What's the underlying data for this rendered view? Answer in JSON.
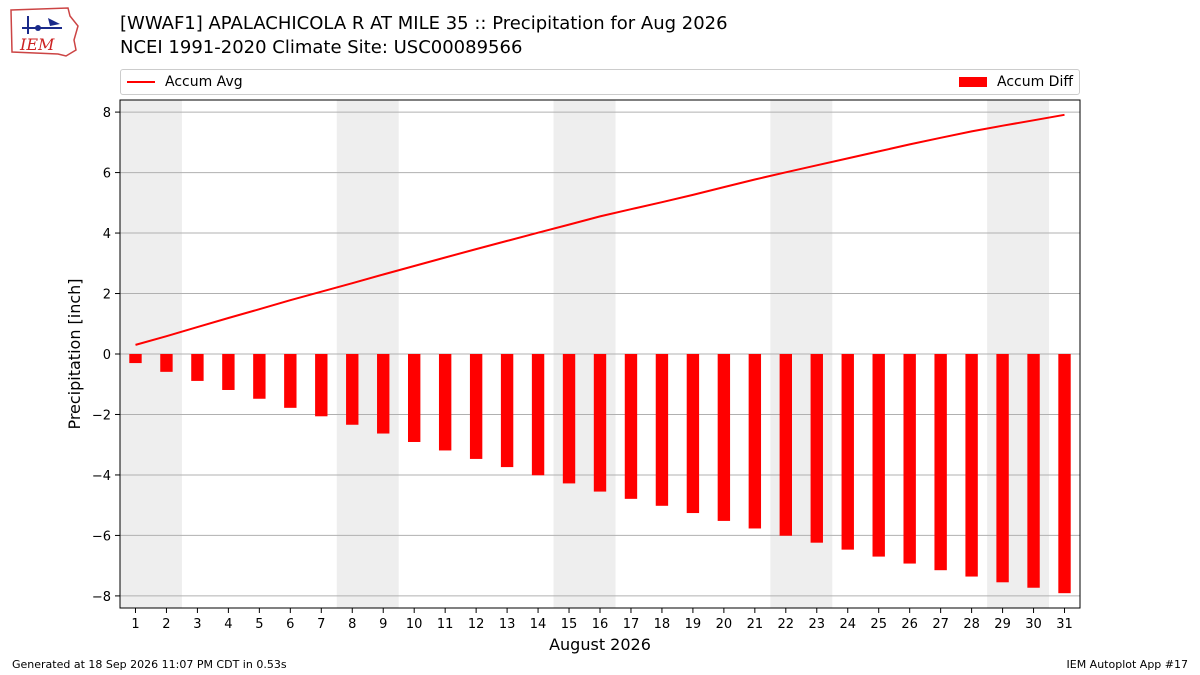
{
  "header": {
    "title_line1": "[WWAF1] APALACHICOLA R AT MILE 35 :: Precipitation for Aug 2026",
    "title_line2": "NCEI 1991-2020 Climate Site: USC00089566"
  },
  "logo": {
    "text": "IEM",
    "icon": "iem-logo-icon"
  },
  "footer": {
    "left": "Generated at 18 Sep 2026 11:07 PM CDT in 0.53s",
    "right": "IEM Autoplot App #17"
  },
  "colors": {
    "series": "#ff0000",
    "weekend_band": "#eeeeee",
    "grid": "#b0b0b0"
  },
  "chart_data": {
    "type": "bar",
    "xlabel": "August 2026",
    "ylabel": "Precipitation [inch]",
    "ylim": [
      -8.4,
      8.4
    ],
    "yticks": [
      -8,
      -6,
      -4,
      -2,
      0,
      2,
      4,
      6,
      8
    ],
    "grid": true,
    "legend_placement": "top",
    "x": [
      1,
      2,
      3,
      4,
      5,
      6,
      7,
      8,
      9,
      10,
      11,
      12,
      13,
      14,
      15,
      16,
      17,
      18,
      19,
      20,
      21,
      22,
      23,
      24,
      25,
      26,
      27,
      28,
      29,
      30,
      31
    ],
    "weekend_bands": [
      [
        1,
        2
      ],
      [
        8,
        9
      ],
      [
        15,
        16
      ],
      [
        22,
        23
      ],
      [
        29,
        30
      ]
    ],
    "series": [
      {
        "name": "Accum Avg",
        "type": "line",
        "values": [
          0.3,
          0.59,
          0.89,
          1.19,
          1.48,
          1.78,
          2.06,
          2.34,
          2.63,
          2.91,
          3.19,
          3.47,
          3.74,
          4.01,
          4.28,
          4.55,
          4.79,
          5.02,
          5.26,
          5.52,
          5.77,
          6.01,
          6.24,
          6.47,
          6.7,
          6.93,
          7.15,
          7.36,
          7.55,
          7.73,
          7.91
        ]
      },
      {
        "name": "Accum Diff",
        "type": "bar",
        "values": [
          -0.3,
          -0.59,
          -0.89,
          -1.19,
          -1.48,
          -1.78,
          -2.06,
          -2.34,
          -2.63,
          -2.91,
          -3.19,
          -3.47,
          -3.74,
          -4.01,
          -4.28,
          -4.55,
          -4.79,
          -5.02,
          -5.26,
          -5.52,
          -5.77,
          -6.01,
          -6.24,
          -6.47,
          -6.7,
          -6.93,
          -7.15,
          -7.36,
          -7.55,
          -7.73,
          -7.91
        ]
      }
    ]
  }
}
